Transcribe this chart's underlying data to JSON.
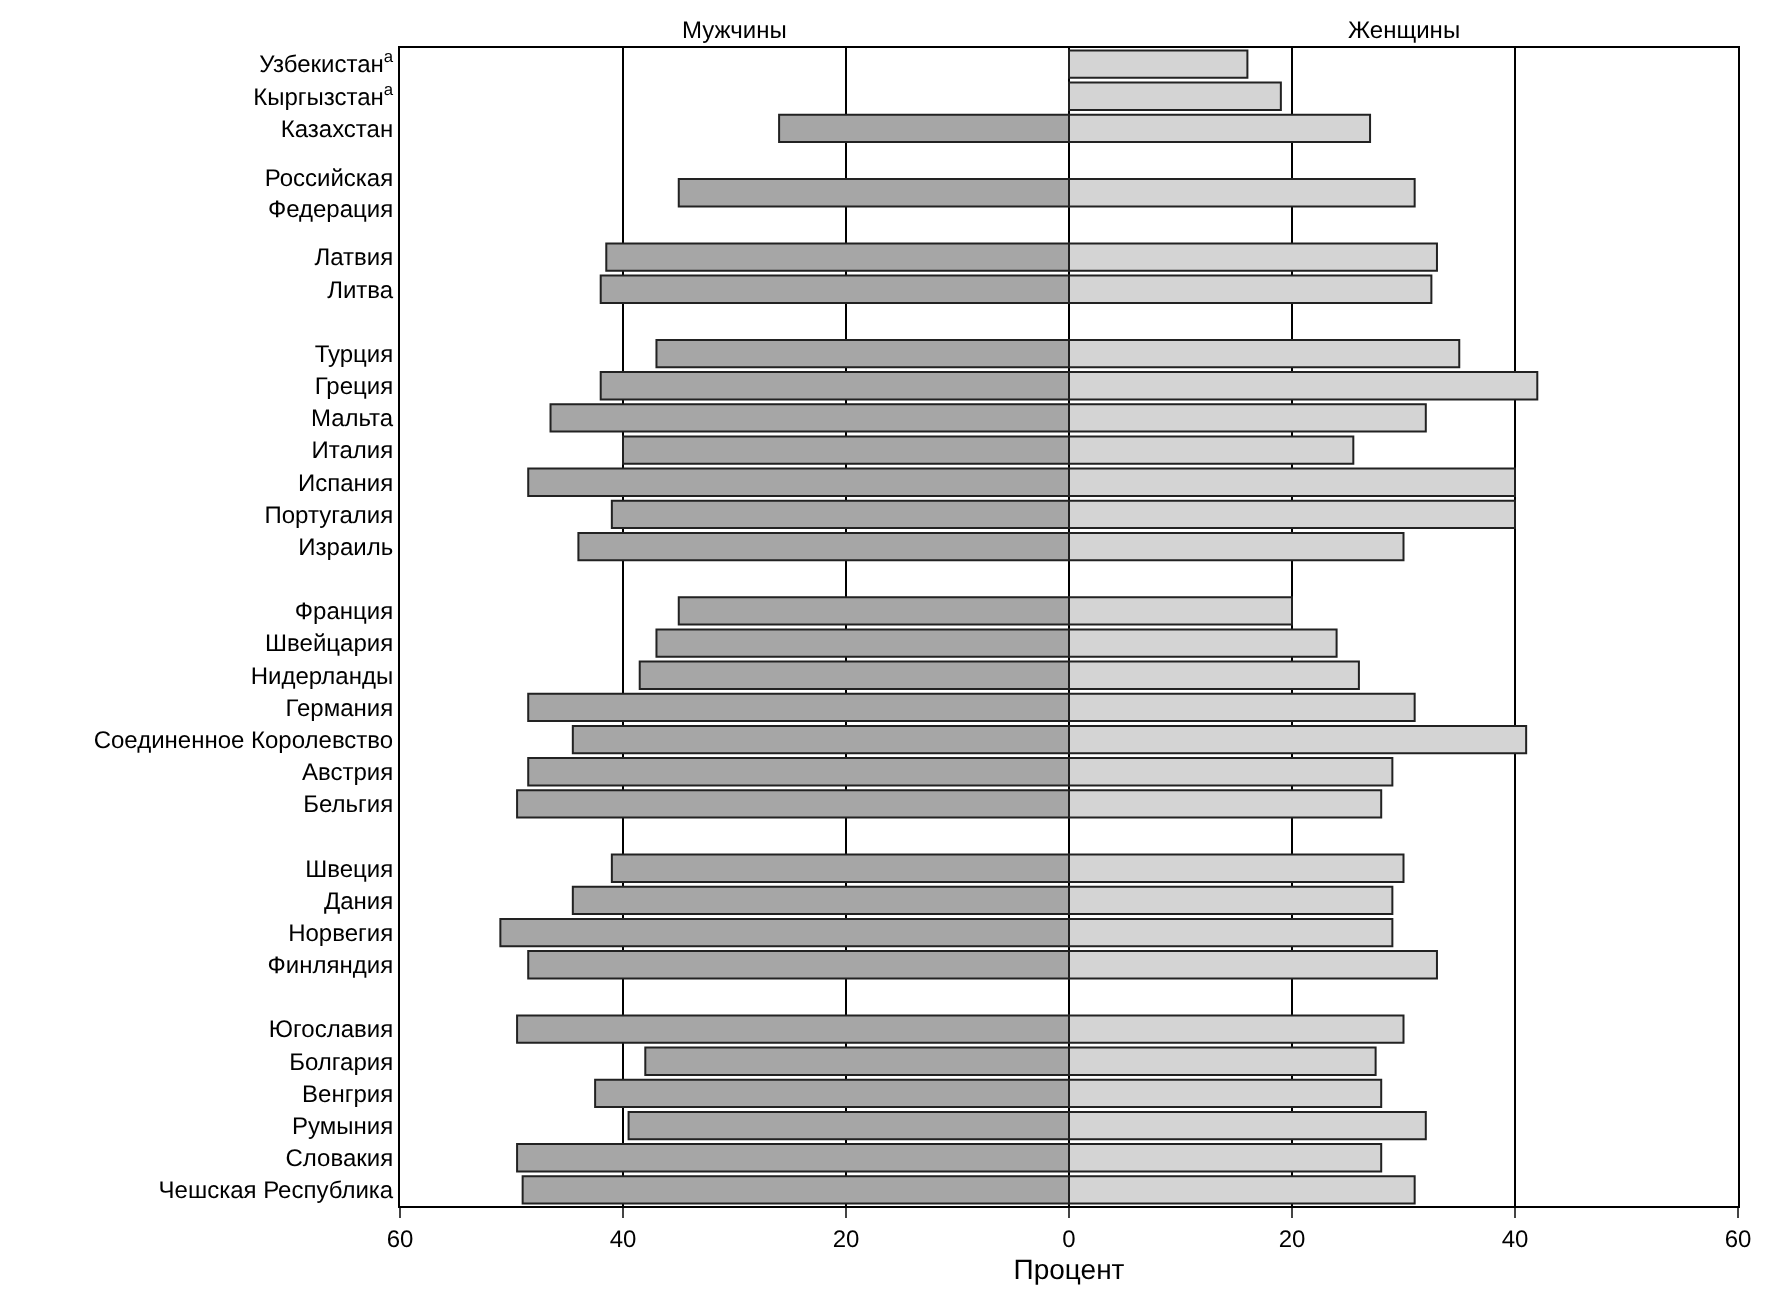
{
  "chart_data": {
    "type": "bar",
    "orientation": "horizontal",
    "stacked": true,
    "xlabel": "Процент",
    "categories": [
      "Узбекистан$^{а}$",
      "Кыргызстан$^{а}$",
      "Казахстан",
      null,
      "Российская\nФедерация",
      null,
      "Латвия",
      "Литва",
      null,
      "Турция",
      "Греция",
      "Мальта",
      "Италия",
      "Испания",
      "Португалия",
      "Израиль",
      null,
      "Франция",
      "Швейцария",
      "Нидерланды",
      "Германия",
      "Соединенное Королевство",
      "Австрия",
      "Бельгия",
      null,
      "Швеция",
      "Дания",
      "Норвегия",
      "Финляндия",
      null,
      "Югославия",
      "Болгария",
      "Венгрия",
      "Румыния",
      "Словакия",
      "Чешская Республика"
    ],
    "series": [
      {
        "name": "Мужчины",
        "color": "#a6a6a6",
        "values": [
          null,
          null,
          -26,
          null,
          -35,
          null,
          -41.5,
          -42,
          null,
          -37,
          -42,
          -46.5,
          -40,
          -48.5,
          -41,
          -44,
          null,
          -35,
          -37,
          -38.5,
          -48.5,
          -44.5,
          -48.5,
          -49.5,
          null,
          -41,
          -44.5,
          -51,
          -48.5,
          null,
          -49.5,
          -38,
          -42.5,
          -39.5,
          -49.5,
          -49
        ]
      },
      {
        "name": "Женщины",
        "color": "#d4d4d4",
        "values": [
          16,
          19,
          27,
          null,
          31,
          null,
          33,
          32.5,
          null,
          35,
          42,
          32,
          25.5,
          40,
          40,
          30,
          null,
          20,
          24,
          26,
          31,
          41,
          29,
          28,
          null,
          30,
          29,
          29,
          33,
          null,
          30,
          27.5,
          28,
          32,
          28,
          31
        ]
      }
    ],
    "xlim": [
      -60,
      60
    ],
    "xticks": [
      {
        "value": -60,
        "label": "60"
      },
      {
        "value": -40,
        "label": "40"
      },
      {
        "value": -20,
        "label": "20"
      },
      0,
      20,
      40,
      60
    ],
    "grid": "x",
    "legend": false
  }
}
